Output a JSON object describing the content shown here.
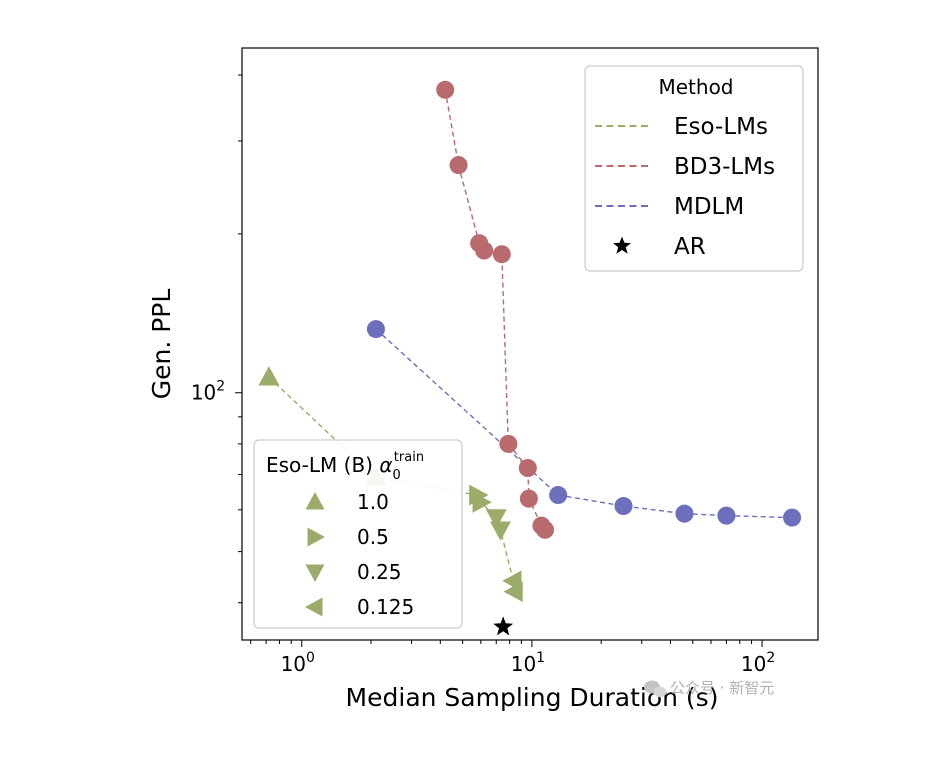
{
  "chart_data": {
    "type": "scatter",
    "xlabel": "Median Sampling Duration (s)",
    "ylabel": "Gen. PPL",
    "xscale": "log",
    "yscale": "log",
    "xlim": [
      0.55,
      175
    ],
    "ylim": [
      34,
      450
    ],
    "x_ticks": [
      {
        "value": 1,
        "base": "10",
        "exp": "0"
      },
      {
        "value": 10,
        "base": "10",
        "exp": "1"
      },
      {
        "value": 100,
        "base": "10",
        "exp": "2"
      }
    ],
    "y_ticks": [
      {
        "value": 100,
        "base": "10",
        "exp": "2"
      }
    ],
    "series": [
      {
        "name": "Eso-LMs",
        "color": "#9aab6a",
        "points": [
          {
            "x": 0.72,
            "y": 107,
            "marker": "triangle-up"
          },
          {
            "x": 2.1,
            "y": 69,
            "marker": "triangle-up"
          },
          {
            "x": 5.8,
            "y": 64,
            "marker": "triangle-right"
          },
          {
            "x": 6.0,
            "y": 62,
            "marker": "triangle-right"
          },
          {
            "x": 7.0,
            "y": 58,
            "marker": "triangle-down"
          },
          {
            "x": 7.3,
            "y": 55,
            "marker": "triangle-down"
          },
          {
            "x": 8.3,
            "y": 44,
            "marker": "triangle-left"
          },
          {
            "x": 8.4,
            "y": 42,
            "marker": "triangle-left"
          }
        ]
      },
      {
        "name": "BD3-LMs",
        "color": "#b86a6c",
        "points": [
          {
            "x": 4.2,
            "y": 375
          },
          {
            "x": 4.8,
            "y": 270
          },
          {
            "x": 5.9,
            "y": 192
          },
          {
            "x": 6.2,
            "y": 186
          },
          {
            "x": 7.4,
            "y": 183
          },
          {
            "x": 7.9,
            "y": 80
          },
          {
            "x": 9.6,
            "y": 72
          },
          {
            "x": 9.7,
            "y": 63
          },
          {
            "x": 11.0,
            "y": 56
          },
          {
            "x": 11.4,
            "y": 55
          }
        ]
      },
      {
        "name": "MDLM",
        "color": "#6c6fbb",
        "points": [
          {
            "x": 2.1,
            "y": 132
          },
          {
            "x": 13.0,
            "y": 64
          },
          {
            "x": 25.0,
            "y": 61
          },
          {
            "x": 46.0,
            "y": 59
          },
          {
            "x": 70.0,
            "y": 58.5
          },
          {
            "x": 135.0,
            "y": 58
          }
        ]
      },
      {
        "name": "AR",
        "color": "#000000",
        "marker": "star",
        "points": [
          {
            "x": 7.5,
            "y": 36
          }
        ]
      }
    ],
    "legend_method": {
      "title": "Method",
      "position": "top-right",
      "entries": [
        {
          "label": "Eso-LMs",
          "color": "#9aab6a",
          "style": "dashed"
        },
        {
          "label": "BD3-LMs",
          "color": "#b86a6c",
          "style": "dashed"
        },
        {
          "label": "MDLM",
          "color": "#6c6fbb",
          "style": "dashed"
        },
        {
          "label": "AR",
          "color": "#000000",
          "style": "star"
        }
      ]
    },
    "legend_marker": {
      "title_prefix": "Eso-LM (B)",
      "title_symbol": "α",
      "title_sub": "0",
      "title_sup": "train",
      "position": "bottom-left",
      "entries": [
        {
          "label": "1.0",
          "marker": "triangle-up"
        },
        {
          "label": "0.5",
          "marker": "triangle-right"
        },
        {
          "label": "0.25",
          "marker": "triangle-down"
        },
        {
          "label": "0.125",
          "marker": "triangle-left"
        }
      ]
    }
  },
  "watermark": {
    "text": "公众号 · 新智元",
    "icon": "wechat-icon"
  }
}
